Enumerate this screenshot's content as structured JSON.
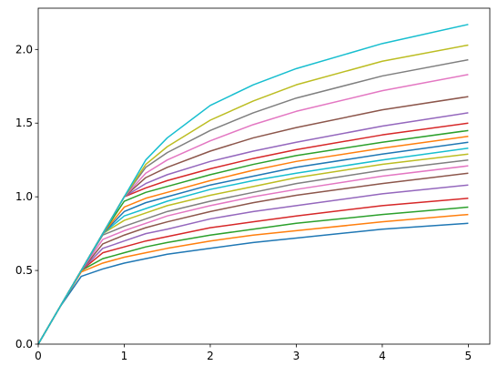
{
  "chart_data": {
    "type": "line",
    "x": [
      0,
      0.25,
      0.5,
      0.75,
      1,
      1.25,
      1.5,
      2,
      2.5,
      3,
      4,
      5
    ],
    "xlim": [
      0,
      5.25
    ],
    "xticks": [
      0,
      1,
      2,
      3,
      4,
      5
    ],
    "ylim": [
      0,
      2.28
    ],
    "yticks": [
      {
        "value": 0,
        "label": "0.0"
      },
      {
        "value": 0.5,
        "label": "0.5"
      },
      {
        "value": 1,
        "label": "1.0"
      },
      {
        "value": 1.5,
        "label": "1.5"
      },
      {
        "value": 2,
        "label": "2.0"
      }
    ],
    "grid": false,
    "series": [
      {
        "color": "#1f77b4",
        "values": [
          0,
          0.25,
          0.46,
          0.51,
          0.55,
          0.58,
          0.61,
          0.65,
          0.69,
          0.72,
          0.78,
          0.82
        ]
      },
      {
        "color": "#ff7f0e",
        "values": [
          0,
          0.25,
          0.49,
          0.55,
          0.59,
          0.62,
          0.65,
          0.7,
          0.74,
          0.77,
          0.83,
          0.88
        ]
      },
      {
        "color": "#2ca02c",
        "values": [
          0,
          0.25,
          0.5,
          0.58,
          0.62,
          0.66,
          0.69,
          0.74,
          0.78,
          0.82,
          0.88,
          0.93
        ]
      },
      {
        "color": "#d62728",
        "values": [
          0,
          0.25,
          0.5,
          0.62,
          0.66,
          0.7,
          0.73,
          0.79,
          0.83,
          0.87,
          0.94,
          0.99
        ]
      },
      {
        "color": "#9467bd",
        "values": [
          0,
          0.25,
          0.5,
          0.65,
          0.7,
          0.75,
          0.78,
          0.85,
          0.9,
          0.94,
          1.02,
          1.08
        ]
      },
      {
        "color": "#8c564b",
        "values": [
          0,
          0.25,
          0.5,
          0.68,
          0.74,
          0.79,
          0.83,
          0.9,
          0.96,
          1.01,
          1.09,
          1.16
        ]
      },
      {
        "color": "#e377c2",
        "values": [
          0,
          0.25,
          0.5,
          0.71,
          0.77,
          0.82,
          0.87,
          0.94,
          1.0,
          1.05,
          1.14,
          1.21
        ]
      },
      {
        "color": "#7f7f7f",
        "values": [
          0,
          0.25,
          0.5,
          0.74,
          0.8,
          0.85,
          0.9,
          0.97,
          1.03,
          1.09,
          1.18,
          1.25
        ]
      },
      {
        "color": "#bcbd22",
        "values": [
          0,
          0.25,
          0.5,
          0.75,
          0.84,
          0.89,
          0.94,
          1.01,
          1.07,
          1.13,
          1.22,
          1.29
        ]
      },
      {
        "color": "#17becf",
        "values": [
          0,
          0.25,
          0.5,
          0.75,
          0.87,
          0.92,
          0.97,
          1.05,
          1.11,
          1.16,
          1.25,
          1.33
        ]
      },
      {
        "color": "#1f77b4",
        "values": [
          0,
          0.25,
          0.5,
          0.75,
          0.9,
          0.96,
          1.0,
          1.08,
          1.14,
          1.2,
          1.29,
          1.37
        ]
      },
      {
        "color": "#ff7f0e",
        "values": [
          0,
          0.25,
          0.5,
          0.75,
          0.93,
          0.99,
          1.03,
          1.11,
          1.18,
          1.24,
          1.33,
          1.41
        ]
      },
      {
        "color": "#2ca02c",
        "values": [
          0,
          0.25,
          0.5,
          0.75,
          0.97,
          1.03,
          1.07,
          1.15,
          1.22,
          1.28,
          1.37,
          1.45
        ]
      },
      {
        "color": "#d62728",
        "values": [
          0,
          0.25,
          0.5,
          0.75,
          1.0,
          1.06,
          1.11,
          1.19,
          1.26,
          1.32,
          1.42,
          1.5
        ]
      },
      {
        "color": "#9467bd",
        "values": [
          0,
          0.25,
          0.5,
          0.75,
          1.0,
          1.09,
          1.15,
          1.24,
          1.31,
          1.37,
          1.48,
          1.57
        ]
      },
      {
        "color": "#8c564b",
        "values": [
          0,
          0.25,
          0.5,
          0.75,
          1.0,
          1.13,
          1.2,
          1.31,
          1.4,
          1.47,
          1.59,
          1.68
        ]
      },
      {
        "color": "#e377c2",
        "values": [
          0,
          0.25,
          0.5,
          0.75,
          1.0,
          1.16,
          1.25,
          1.38,
          1.49,
          1.58,
          1.72,
          1.83
        ]
      },
      {
        "color": "#7f7f7f",
        "values": [
          0,
          0.25,
          0.5,
          0.75,
          1.0,
          1.2,
          1.3,
          1.45,
          1.57,
          1.67,
          1.82,
          1.93
        ]
      },
      {
        "color": "#bcbd22",
        "values": [
          0,
          0.25,
          0.5,
          0.75,
          1.0,
          1.22,
          1.34,
          1.52,
          1.65,
          1.76,
          1.92,
          2.03
        ]
      },
      {
        "color": "#17becf",
        "values": [
          0,
          0.25,
          0.5,
          0.75,
          1.0,
          1.25,
          1.4,
          1.62,
          1.76,
          1.87,
          2.04,
          2.17
        ]
      }
    ]
  }
}
